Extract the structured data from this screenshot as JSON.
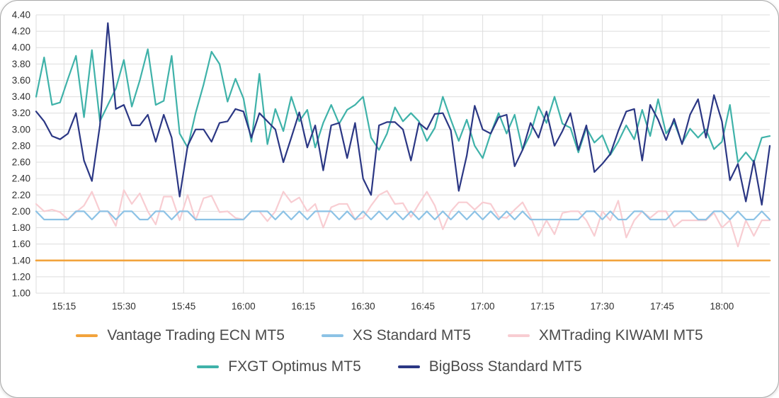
{
  "chart_data": {
    "type": "line",
    "title": "",
    "grid": true,
    "legend_position": "bottom",
    "x_axis": {
      "start_label": "15:08",
      "end_label": "18:12",
      "interval_minutes": 2,
      "total_minutes": 184,
      "points_count": 93,
      "tick_labels": [
        "15:15",
        "15:30",
        "15:45",
        "16:00",
        "16:15",
        "16:30",
        "16:45",
        "17:00",
        "17:15",
        "17:30",
        "17:45",
        "18:00"
      ],
      "tick_offsets_minutes": [
        7,
        22,
        37,
        52,
        67,
        82,
        97,
        112,
        127,
        142,
        157,
        172
      ]
    },
    "y_axis": {
      "min": 1.0,
      "max": 4.4,
      "step": 0.2,
      "tick_labels": [
        "1.00",
        "1.20",
        "1.40",
        "1.60",
        "1.80",
        "2.00",
        "2.20",
        "2.40",
        "2.60",
        "2.80",
        "3.00",
        "3.20",
        "3.40",
        "3.60",
        "3.80",
        "4.00",
        "4.20",
        "4.40"
      ]
    },
    "series": [
      {
        "name": "Vantage Trading ECN MT5",
        "color": "#F2A33C",
        "constant": 1.4
      },
      {
        "name": "XS Standard MT5",
        "color": "#8CC2E5",
        "values": [
          2.0,
          1.9,
          1.9,
          1.9,
          1.9,
          2.0,
          2.0,
          1.9,
          2.0,
          2.0,
          1.9,
          2.0,
          2.0,
          1.9,
          1.9,
          2.0,
          2.0,
          1.9,
          2.0,
          2.0,
          1.9,
          1.9,
          1.9,
          1.9,
          1.9,
          1.9,
          1.9,
          2.0,
          2.0,
          2.0,
          1.9,
          2.0,
          1.9,
          2.0,
          1.9,
          2.0,
          2.0,
          2.0,
          1.9,
          2.0,
          1.9,
          2.0,
          1.9,
          2.0,
          1.9,
          2.0,
          1.9,
          2.0,
          1.9,
          2.0,
          1.9,
          2.0,
          1.9,
          2.0,
          1.9,
          2.0,
          1.9,
          2.0,
          1.9,
          2.0,
          1.9,
          2.0,
          1.9,
          1.9,
          1.9,
          1.9,
          1.9,
          1.9,
          1.9,
          2.0,
          2.0,
          1.9,
          2.0,
          1.9,
          1.9,
          2.0,
          2.0,
          1.9,
          1.9,
          1.9,
          2.0,
          2.0,
          2.0,
          1.9,
          1.9,
          2.0,
          2.0,
          1.9,
          2.0,
          1.9,
          1.9,
          2.0,
          1.9
        ]
      },
      {
        "name": "XMTrading KIWAMI MT5",
        "color": "#F8CDD2",
        "values": [
          2.09,
          2.0,
          2.02,
          1.99,
          1.9,
          1.99,
          2.07,
          2.24,
          2.0,
          2.0,
          1.82,
          2.26,
          2.09,
          2.22,
          2.0,
          1.84,
          2.18,
          2.18,
          1.89,
          2.2,
          1.89,
          2.16,
          2.19,
          1.99,
          2.0,
          1.92,
          1.9,
          2.0,
          2.0,
          1.88,
          2.0,
          2.24,
          2.11,
          2.17,
          2.0,
          2.09,
          1.8,
          2.05,
          2.09,
          2.09,
          1.9,
          1.92,
          2.07,
          2.2,
          2.25,
          2.09,
          2.1,
          1.93,
          2.09,
          2.24,
          2.07,
          1.78,
          2.0,
          2.11,
          2.11,
          2.02,
          2.11,
          2.09,
          1.93,
          1.92,
          2.02,
          2.11,
          1.93,
          1.7,
          1.89,
          1.72,
          1.98,
          2.0,
          2.0,
          1.89,
          1.7,
          2.0,
          1.89,
          2.13,
          1.68,
          1.89,
          2.0,
          1.92,
          2.0,
          2.0,
          1.81,
          1.89,
          1.89,
          1.89,
          1.89,
          1.98,
          1.8,
          1.89,
          1.57,
          1.89,
          1.7,
          1.89,
          1.89
        ]
      },
      {
        "name": "FXGT Optimus MT5",
        "color": "#3FB2A9",
        "values": [
          3.4,
          3.88,
          3.3,
          3.33,
          3.62,
          3.9,
          3.15,
          3.97,
          3.1,
          3.3,
          3.5,
          3.85,
          3.28,
          3.6,
          3.98,
          3.3,
          3.35,
          3.9,
          2.95,
          2.78,
          3.2,
          3.55,
          3.95,
          3.8,
          3.34,
          3.62,
          3.38,
          2.85,
          3.68,
          2.82,
          3.25,
          2.98,
          3.4,
          3.1,
          3.24,
          2.78,
          3.08,
          3.3,
          3.07,
          3.24,
          3.3,
          3.4,
          2.9,
          2.75,
          2.95,
          3.27,
          3.1,
          3.2,
          3.1,
          2.86,
          3.02,
          3.4,
          3.12,
          2.86,
          3.12,
          2.8,
          2.65,
          2.95,
          3.2,
          2.95,
          3.18,
          2.75,
          2.95,
          3.28,
          3.08,
          3.4,
          3.07,
          3.02,
          2.72,
          3.02,
          2.84,
          2.93,
          2.69,
          2.85,
          3.05,
          2.88,
          3.24,
          2.92,
          3.37,
          2.95,
          3.09,
          2.83,
          3.01,
          2.9,
          3.0,
          2.76,
          2.85,
          3.3,
          2.6,
          2.72,
          2.6,
          2.9,
          2.92
        ]
      },
      {
        "name": "BigBoss Standard MT5",
        "color": "#2B3784",
        "values": [
          3.22,
          3.1,
          2.92,
          2.88,
          2.95,
          3.2,
          2.62,
          2.37,
          3.05,
          4.3,
          3.25,
          3.3,
          3.05,
          3.05,
          3.18,
          2.85,
          3.18,
          2.9,
          2.18,
          2.8,
          3.0,
          3.0,
          2.85,
          3.08,
          3.1,
          3.25,
          3.22,
          2.9,
          3.2,
          3.1,
          3.0,
          2.6,
          2.9,
          3.21,
          2.78,
          3.05,
          2.5,
          3.05,
          3.08,
          2.65,
          3.08,
          2.4,
          2.2,
          3.05,
          3.09,
          3.09,
          3.0,
          2.62,
          3.08,
          3.0,
          3.19,
          3.2,
          2.99,
          2.25,
          2.68,
          3.29,
          3.0,
          2.95,
          3.15,
          3.18,
          2.55,
          2.75,
          3.08,
          2.9,
          3.22,
          2.8,
          2.98,
          3.2,
          2.75,
          3.05,
          2.48,
          2.58,
          2.7,
          2.98,
          3.22,
          3.25,
          2.62,
          3.3,
          3.12,
          2.87,
          3.13,
          2.82,
          3.18,
          3.37,
          2.9,
          3.42,
          3.1,
          2.38,
          2.58,
          2.12,
          2.62,
          2.08,
          2.8
        ]
      }
    ]
  },
  "legend": {
    "rows": [
      [
        0,
        1,
        2
      ],
      [
        3,
        4
      ]
    ]
  },
  "style": {
    "grid_color": "#dddddd",
    "axis_text_color": "#2f2f2f",
    "legend_text_color": "#4b4b4b"
  }
}
